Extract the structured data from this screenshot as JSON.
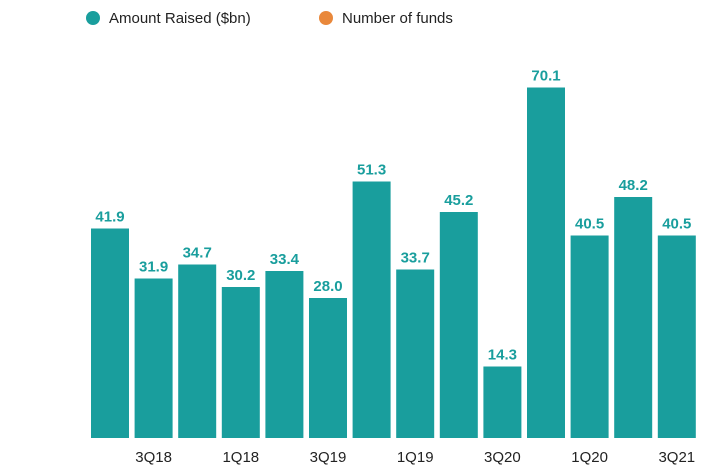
{
  "chart_data": {
    "type": "bar",
    "legend": [
      {
        "name": "Amount Raised ($bn)",
        "color": "#199e9d"
      },
      {
        "name": "Number of funds",
        "color": "#e9883b"
      }
    ],
    "categories": [
      null,
      "3Q18",
      null,
      "1Q18",
      null,
      "3Q19",
      null,
      "1Q19",
      null,
      "3Q20",
      null,
      "1Q20",
      null,
      "3Q21"
    ],
    "values": [
      41.9,
      31.9,
      34.7,
      30.2,
      33.4,
      28.0,
      51.3,
      33.7,
      45.2,
      14.3,
      70.1,
      40.5,
      48.2,
      40.5
    ],
    "value_labels": [
      "41.9",
      "31.9",
      "34.7",
      "30.2",
      "33.4",
      "28.0",
      "51.3",
      "33.7",
      "45.2",
      "14.3",
      "70.1",
      "40.5",
      "48.2",
      "40.5"
    ],
    "color": "#199e9d",
    "ylim": [
      0,
      80
    ]
  }
}
